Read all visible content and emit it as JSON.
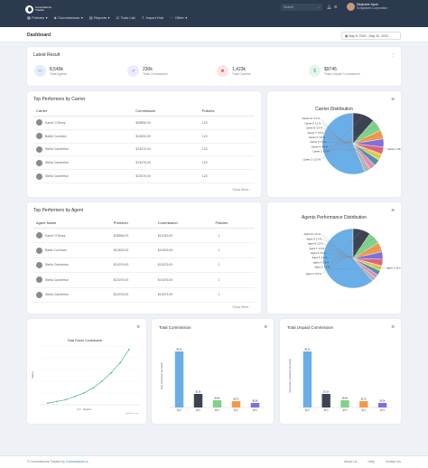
{
  "app": {
    "logo_line1": "Commissions",
    "logo_line2": "Tracker",
    "search_placeholder": "Search",
    "user_name": "Stephanie Jacob",
    "user_role": "Sunglasses Corporation"
  },
  "nav": [
    {
      "label": "Policies",
      "icon": "grid-icon",
      "chev": "▾"
    },
    {
      "label": "Commissions",
      "icon": "money-icon",
      "chev": "▾"
    },
    {
      "label": "Reports",
      "icon": "chart-icon",
      "chev": "▾"
    },
    {
      "label": "Todo List",
      "icon": "checklist-icon",
      "chev": ""
    },
    {
      "label": "Import Hub",
      "icon": "upload-icon",
      "chev": ""
    },
    {
      "label": "Other",
      "icon": "more-icon",
      "chev": "▾"
    }
  ],
  "dashboard": {
    "title": "Dashboard",
    "date_range": "May 5, 2020 - May 30, 2020"
  },
  "latest": {
    "title": "Latest Result",
    "kpis": [
      {
        "value": "8,549k",
        "label": "Total Agents",
        "icon": "users-icon",
        "color": "#3b7bd8",
        "bg": "#e3edfb"
      },
      {
        "value": "230k",
        "label": "Total Commission",
        "icon": "chart-line-icon",
        "color": "#7b68ee",
        "bg": "#ecebfb"
      },
      {
        "value": "1,423k",
        "label": "Total Carriers",
        "icon": "carrier-icon",
        "color": "#e05252",
        "bg": "#fbe6e6"
      },
      {
        "value": "$9745",
        "label": "Total Unpaid Commission",
        "icon": "dollar-icon",
        "color": "#3cb371",
        "bg": "#e4f6ec"
      }
    ]
  },
  "carrier_table": {
    "title": "Top Performers by Carrier",
    "headers": [
      "Carrier",
      "Commission",
      "Policies"
    ],
    "rows": [
      {
        "name": "Karrie O'Dewy",
        "commission": "$28896.00",
        "policies": "123"
      },
      {
        "name": "Bailie Coulman",
        "commission": "$10633.00",
        "policies": "123"
      },
      {
        "name": "Stella Canderton",
        "commission": "$13076.00",
        "policies": "123"
      },
      {
        "name": "Stella Canderton",
        "commission": "$13076.00",
        "policies": "123"
      },
      {
        "name": "Stella Canderton",
        "commission": "$13076.00",
        "policies": "123"
      }
    ],
    "show_more": "Show More..."
  },
  "agent_table": {
    "title": "Top Performers by Agent",
    "headers": [
      "Agent Name",
      "Premium",
      "Commission",
      "Policies"
    ],
    "rows": [
      {
        "name": "Karrie O'Dewy",
        "premium": "$28896.00",
        "commission": "$12043.00",
        "policies": "1"
      },
      {
        "name": "Bailie Coulman",
        "premium": "$10633.00",
        "commission": "$10633.00",
        "policies": "1"
      },
      {
        "name": "Stella Canderton",
        "premium": "$13076.00",
        "commission": "$13076.00",
        "policies": "1"
      },
      {
        "name": "Stella Canderton",
        "premium": "$13076.00",
        "commission": "$13076.00",
        "policies": "1"
      },
      {
        "name": "Stella Canderton",
        "premium": "$13076.00",
        "commission": "$13076.00",
        "policies": "1"
      }
    ],
    "show_more": "Show More..."
  },
  "footer": {
    "left_prefix": "© Commissions Tracker by ",
    "left_link": "Commissions.io",
    "links": [
      "About Us",
      "Help",
      "Contact Us"
    ]
  },
  "chart_data": [
    {
      "type": "pie",
      "title": "Carrier Distribution",
      "labels": [
        "Carrier 1",
        "Carrier 2",
        "Carrier 3",
        "Carrier 4",
        "Carrier 5",
        "Carrier 6",
        "Carrier 7",
        "Carrier 8",
        "Carrier 9",
        "Carrier 10"
      ],
      "values": [
        56.4,
        11.5,
        6.2,
        4.8,
        4.3,
        3.8,
        3.5,
        3.3,
        3.1,
        3.1
      ],
      "value_labels": [
        "56.4 %",
        "11.5 %",
        "6.2 %",
        "4.8 %",
        "4.3 %",
        "3.8 %",
        "3.5 %",
        "3.3 %",
        "3.1 %",
        "3.1 %"
      ],
      "colors": [
        "#6aaee8",
        "#3d4451",
        "#7fd18b",
        "#f29a4a",
        "#7e6fe0",
        "#e9607a",
        "#e0d35a",
        "#4d8fb0",
        "#e88fb3",
        "#b5b5b5"
      ]
    },
    {
      "type": "pie",
      "title": "Agents Performance Distribution",
      "labels": [
        "Agent 1",
        "Agent 2",
        "Agent 3",
        "Agent 4",
        "Agent 5",
        "Agent 6",
        "Agent 7",
        "Agent 8",
        "Agent 9",
        "Agent 10"
      ],
      "values": [
        61.4,
        9.5,
        6.7,
        5.2,
        4.1,
        3.5,
        2.9,
        2.5,
        2.2,
        2.0
      ],
      "value_labels": [
        "61.4 %",
        "9.5 %",
        "6.7 %",
        "5.2 %",
        "4.1 %",
        "3.5 %",
        "2.9 %",
        "2.5 %",
        "2.2 %",
        "2.0 %"
      ],
      "colors": [
        "#6aaee8",
        "#3d4451",
        "#7fd18b",
        "#f29a4a",
        "#7e6fe0",
        "#e9607a",
        "#e0d35a",
        "#4d8fb0",
        "#e88fb3",
        "#b5b5b5"
      ]
    },
    {
      "type": "line",
      "title": "Total Future Commission",
      "ylabel": "Values",
      "series": [
        {
          "name": "Series 1",
          "values": [
            1,
            2,
            3,
            5,
            7,
            10,
            14,
            19,
            25,
            33
          ],
          "color": "#3cb39a"
        }
      ],
      "x": [
        1,
        2,
        3,
        4,
        5,
        6,
        7,
        8,
        9,
        10
      ],
      "ylim": [
        0,
        35
      ],
      "credit": "Highcharts.com"
    },
    {
      "type": "bar",
      "title": "Total Commission",
      "ylabel": "Total commission per month",
      "categories": [
        "A",
        "B",
        "C",
        "D",
        "E"
      ],
      "values": [
        6.2,
        1.5,
        0.8,
        0.7,
        0.5
      ],
      "value_labels": [
        "$6.2k",
        "$1.5k",
        "$0.8k",
        "$0.7k",
        "$0.5k"
      ],
      "axis_labels": [
        "$0.0",
        "$0.0",
        "$0.0",
        "$0.0",
        "$0.0"
      ],
      "colors": [
        "#6aaee8",
        "#3d4451",
        "#7fd18b",
        "#f29a4a",
        "#7e6fe0"
      ],
      "ylim": [
        0,
        7
      ]
    },
    {
      "type": "bar",
      "title": "Total Unpaid Commission",
      "ylabel": "Total unpaid commission per month",
      "categories": [
        "A",
        "B",
        "C",
        "D",
        "E"
      ],
      "values": [
        6.2,
        1.5,
        0.8,
        0.7,
        0.5
      ],
      "value_labels": [
        "$6.2k",
        "$1.5k",
        "$0.8k",
        "$0.7k",
        "$0.5k"
      ],
      "axis_labels": [
        "$0.0",
        "$0.0",
        "$0.0",
        "$0.0",
        "$0.0"
      ],
      "colors": [
        "#6aaee8",
        "#3d4451",
        "#7fd18b",
        "#f29a4a",
        "#7e6fe0"
      ],
      "ylim": [
        0,
        7
      ]
    }
  ]
}
